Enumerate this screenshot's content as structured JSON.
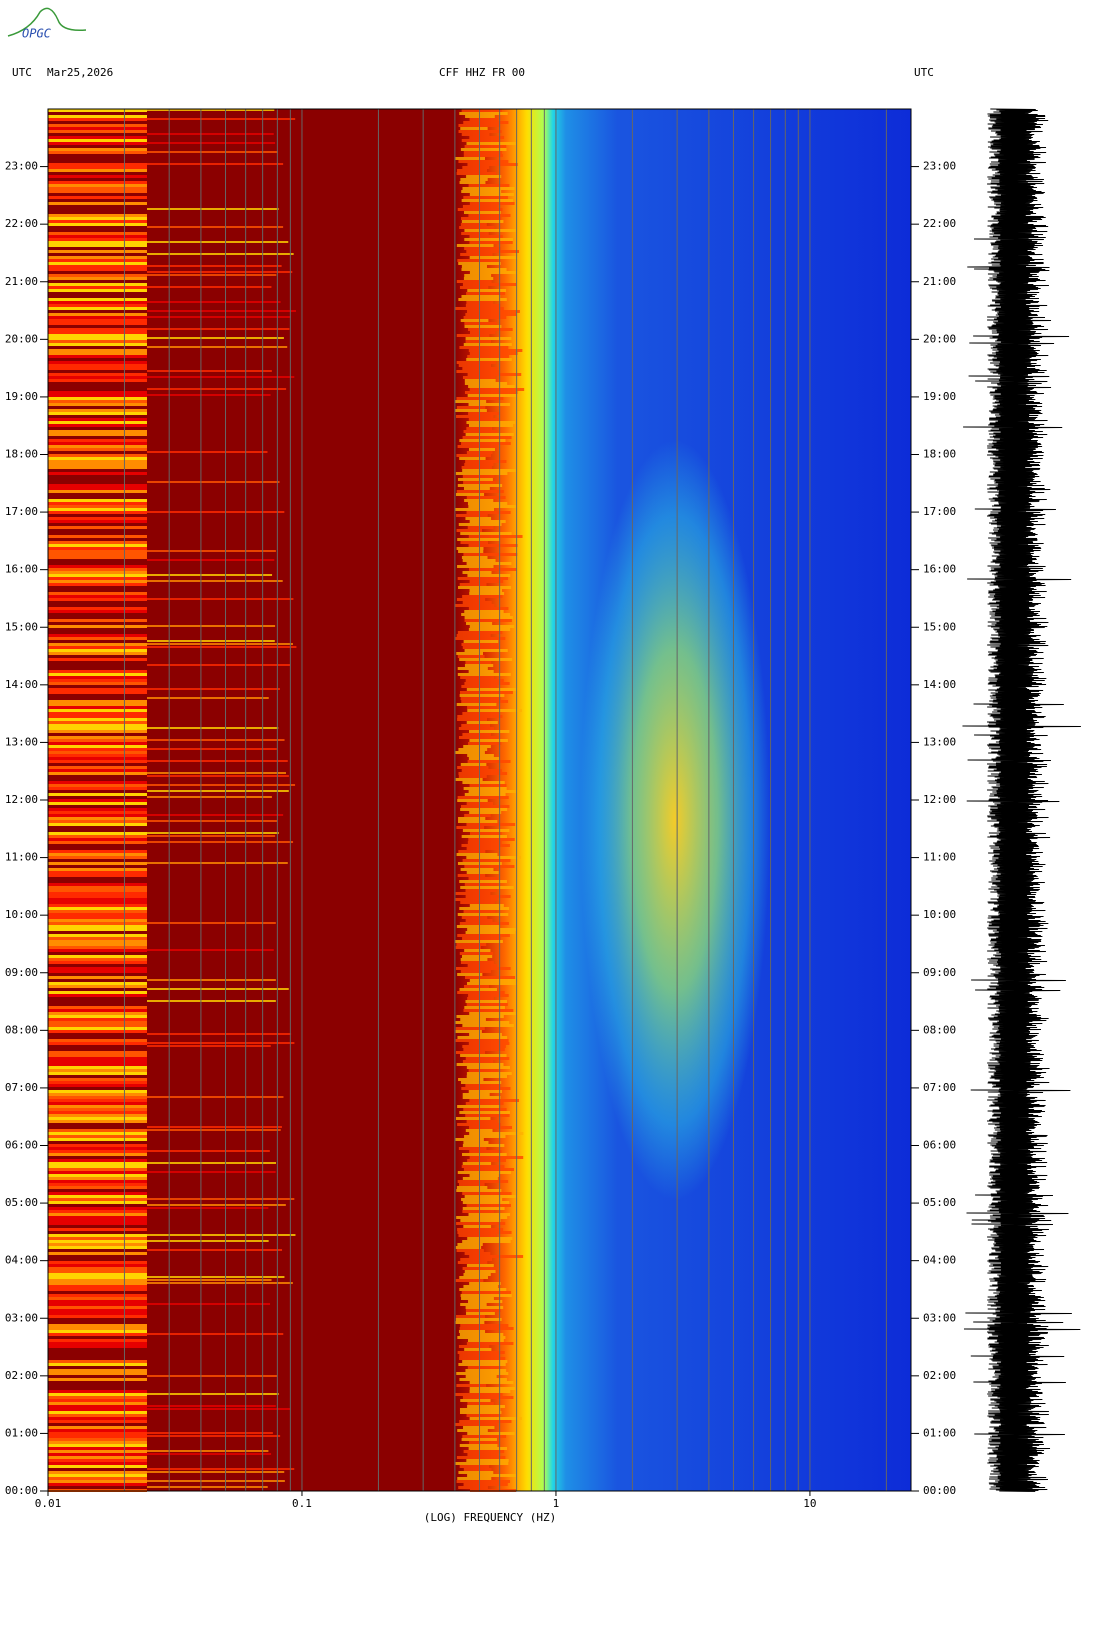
{
  "logo": "OPGC",
  "chart_data": {
    "type": "spectrogram",
    "title": "CFF HHZ FR 00",
    "timezone_left": "UTC",
    "date": "Mar25,2026",
    "timezone_right": "UTC",
    "xlabel": "(LOG) FREQUENCY (HZ)",
    "xscale": "log",
    "xlim": [
      0.01,
      25
    ],
    "xticks": [
      0.01,
      0.1,
      1,
      10
    ],
    "xgrid": [
      0.02,
      0.03,
      0.04,
      0.05,
      0.06,
      0.07,
      0.08,
      0.09,
      0.1,
      0.2,
      0.3,
      0.4,
      0.5,
      0.6,
      0.7,
      0.8,
      0.9,
      1,
      2,
      3,
      4,
      5,
      6,
      7,
      8,
      9,
      10,
      20
    ],
    "ylim": [
      0,
      24
    ],
    "yticks": [
      {
        "value": 0,
        "label": "00:00"
      },
      {
        "value": 1,
        "label": "01:00"
      },
      {
        "value": 2,
        "label": "02:00"
      },
      {
        "value": 3,
        "label": "03:00"
      },
      {
        "value": 4,
        "label": "04:00"
      },
      {
        "value": 5,
        "label": "05:00"
      },
      {
        "value": 6,
        "label": "06:00"
      },
      {
        "value": 7,
        "label": "07:00"
      },
      {
        "value": 8,
        "label": "08:00"
      },
      {
        "value": 9,
        "label": "09:00"
      },
      {
        "value": 10,
        "label": "10:00"
      },
      {
        "value": 11,
        "label": "11:00"
      },
      {
        "value": 12,
        "label": "12:00"
      },
      {
        "value": 13,
        "label": "13:00"
      },
      {
        "value": 14,
        "label": "14:00"
      },
      {
        "value": 15,
        "label": "15:00"
      },
      {
        "value": 16,
        "label": "16:00"
      },
      {
        "value": 17,
        "label": "17:00"
      },
      {
        "value": 18,
        "label": "18:00"
      },
      {
        "value": 19,
        "label": "19:00"
      },
      {
        "value": 20,
        "label": "20:00"
      },
      {
        "value": 21,
        "label": "21:00"
      },
      {
        "value": 22,
        "label": "22:00"
      },
      {
        "value": 23,
        "label": "23:00"
      }
    ]
  }
}
